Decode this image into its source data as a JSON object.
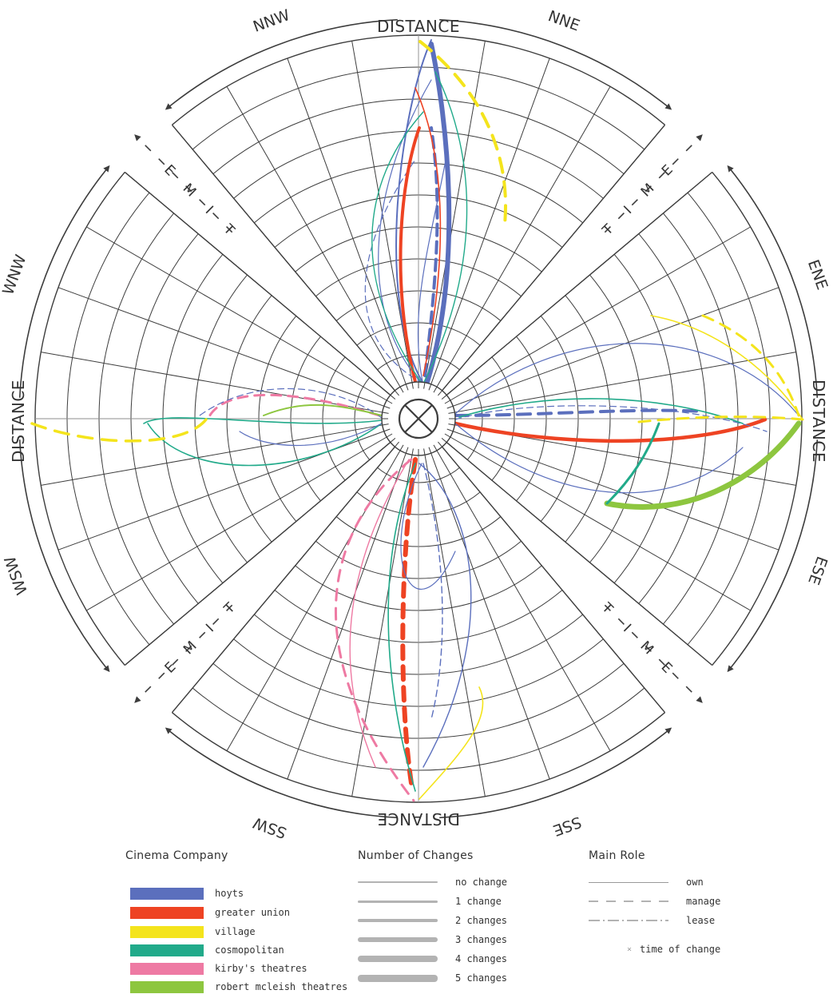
{
  "compass": {
    "distance_top": "DISTANCE",
    "distance_bottom": "DISTANCE",
    "distance_left": "DISTANCE",
    "distance_right": "DISTANCE",
    "directions": {
      "nnw": "NNW",
      "nne": "NNE",
      "ene": "ENE",
      "ese": "ESE",
      "sse": "SSE",
      "ssw": "SSW",
      "wsw": "WSW",
      "wnw": "WNW"
    },
    "time_letters": [
      "T",
      "I",
      "M",
      "E"
    ]
  },
  "colors": {
    "hoyts": "#5b6fbd",
    "greater_union": "#ee4323",
    "village": "#f4e41c",
    "cosmopolitan": "#21aa8a",
    "kirbys": "#ee7aa3",
    "mcleish": "#8dc63f",
    "grid": "#3d3d3d"
  },
  "legend": {
    "company": {
      "title": "Cinema Company",
      "items": [
        {
          "label": "hoyts",
          "color": "#5b6fbd"
        },
        {
          "label": "greater union",
          "color": "#ee4323"
        },
        {
          "label": "village",
          "color": "#f4e41c"
        },
        {
          "label": "cosmopolitan",
          "color": "#21aa8a"
        },
        {
          "label": "kirby's theatres",
          "color": "#ee7aa3"
        },
        {
          "label": "robert mcleish theatres",
          "color": "#8dc63f"
        }
      ]
    },
    "changes": {
      "title": "Number of Changes",
      "items": [
        {
          "label": "no change",
          "weight": 1.5
        },
        {
          "label": "1 change",
          "weight": 3
        },
        {
          "label": "2 changes",
          "weight": 4.5
        },
        {
          "label": "3 changes",
          "weight": 6
        },
        {
          "label": "4 changes",
          "weight": 7.5
        },
        {
          "label": "5 changes",
          "weight": 9
        }
      ]
    },
    "role": {
      "title": "Main Role",
      "items": [
        {
          "label": "own",
          "style": "solid"
        },
        {
          "label": "manage",
          "style": "dashed"
        },
        {
          "label": "lease",
          "style": "dashdot"
        }
      ],
      "time_marker": "time of change"
    }
  }
}
